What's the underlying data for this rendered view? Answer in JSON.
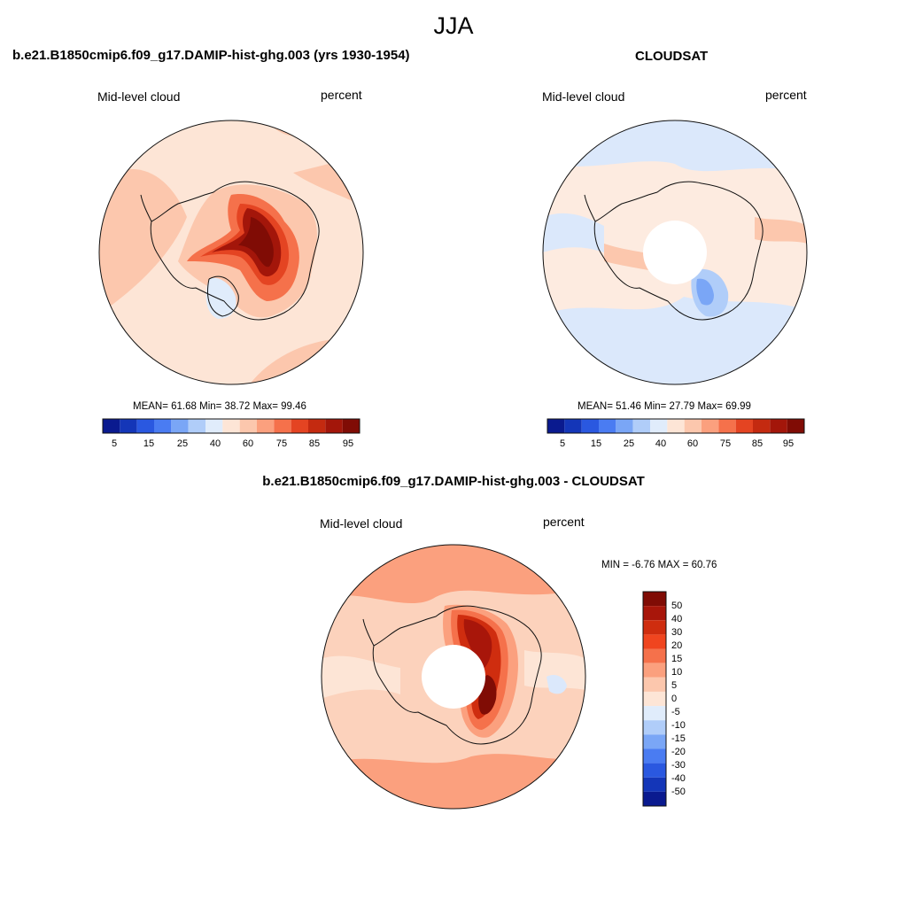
{
  "figure": {
    "season_title": "JJA"
  },
  "panels": [
    {
      "title": "b.e21.B1850cmip6.f09_g17.DAMIP-hist-ghg.003 (yrs 1930-1954)",
      "variable": "Mid-level cloud",
      "units": "percent",
      "stats": "MEAN=  61.68  Min=  38.72  Max=  99.46",
      "colorbar_labels": [
        "5",
        "15",
        "25",
        "40",
        "60",
        "75",
        "85",
        "95"
      ],
      "background_color": "#fde5d6",
      "center_hole": false
    },
    {
      "title": "CLOUDSAT",
      "variable": "Mid-level cloud",
      "units": "percent",
      "stats": "MEAN=  51.46  Min=  27.79  Max=  69.99",
      "colorbar_labels": [
        "5",
        "15",
        "25",
        "40",
        "60",
        "75",
        "85",
        "95"
      ],
      "background_color": "#fdebe0",
      "center_hole": true
    },
    {
      "title": "b.e21.B1850cmip6.f09_g17.DAMIP-hist-ghg.003 - CLOUDSAT",
      "variable": "Mid-level cloud",
      "units": "percent",
      "stats": "MIN =  -6.76 MAX =  60.76",
      "colorbar_labels": [
        "50",
        "40",
        "30",
        "20",
        "15",
        "10",
        "5",
        "0",
        "-5",
        "-10",
        "-15",
        "-20",
        "-30",
        "-40",
        "-50"
      ],
      "background_color": "#fcd2bc",
      "center_hole": true
    }
  ],
  "colors": {
    "abs_scale": [
      "#0a1a8f",
      "#1436b8",
      "#2a58e0",
      "#4a7cf2",
      "#7aa6f6",
      "#b0cdf9",
      "#e0ecfb",
      "#fde5d6",
      "#fcc7ad",
      "#fba07e",
      "#f5714b",
      "#e44422",
      "#c42a10",
      "#a3160a",
      "#800c05"
    ],
    "diff_scale": [
      "#800c05",
      "#a8160a",
      "#cf2d0f",
      "#f0451f",
      "#f5714b",
      "#fba07e",
      "#fcc7ad",
      "#fde5d6",
      "#e0ecfb",
      "#b0cdf9",
      "#7aa6f6",
      "#4a7cf2",
      "#2a58e0",
      "#1436b8",
      "#0a1a8f"
    ]
  }
}
